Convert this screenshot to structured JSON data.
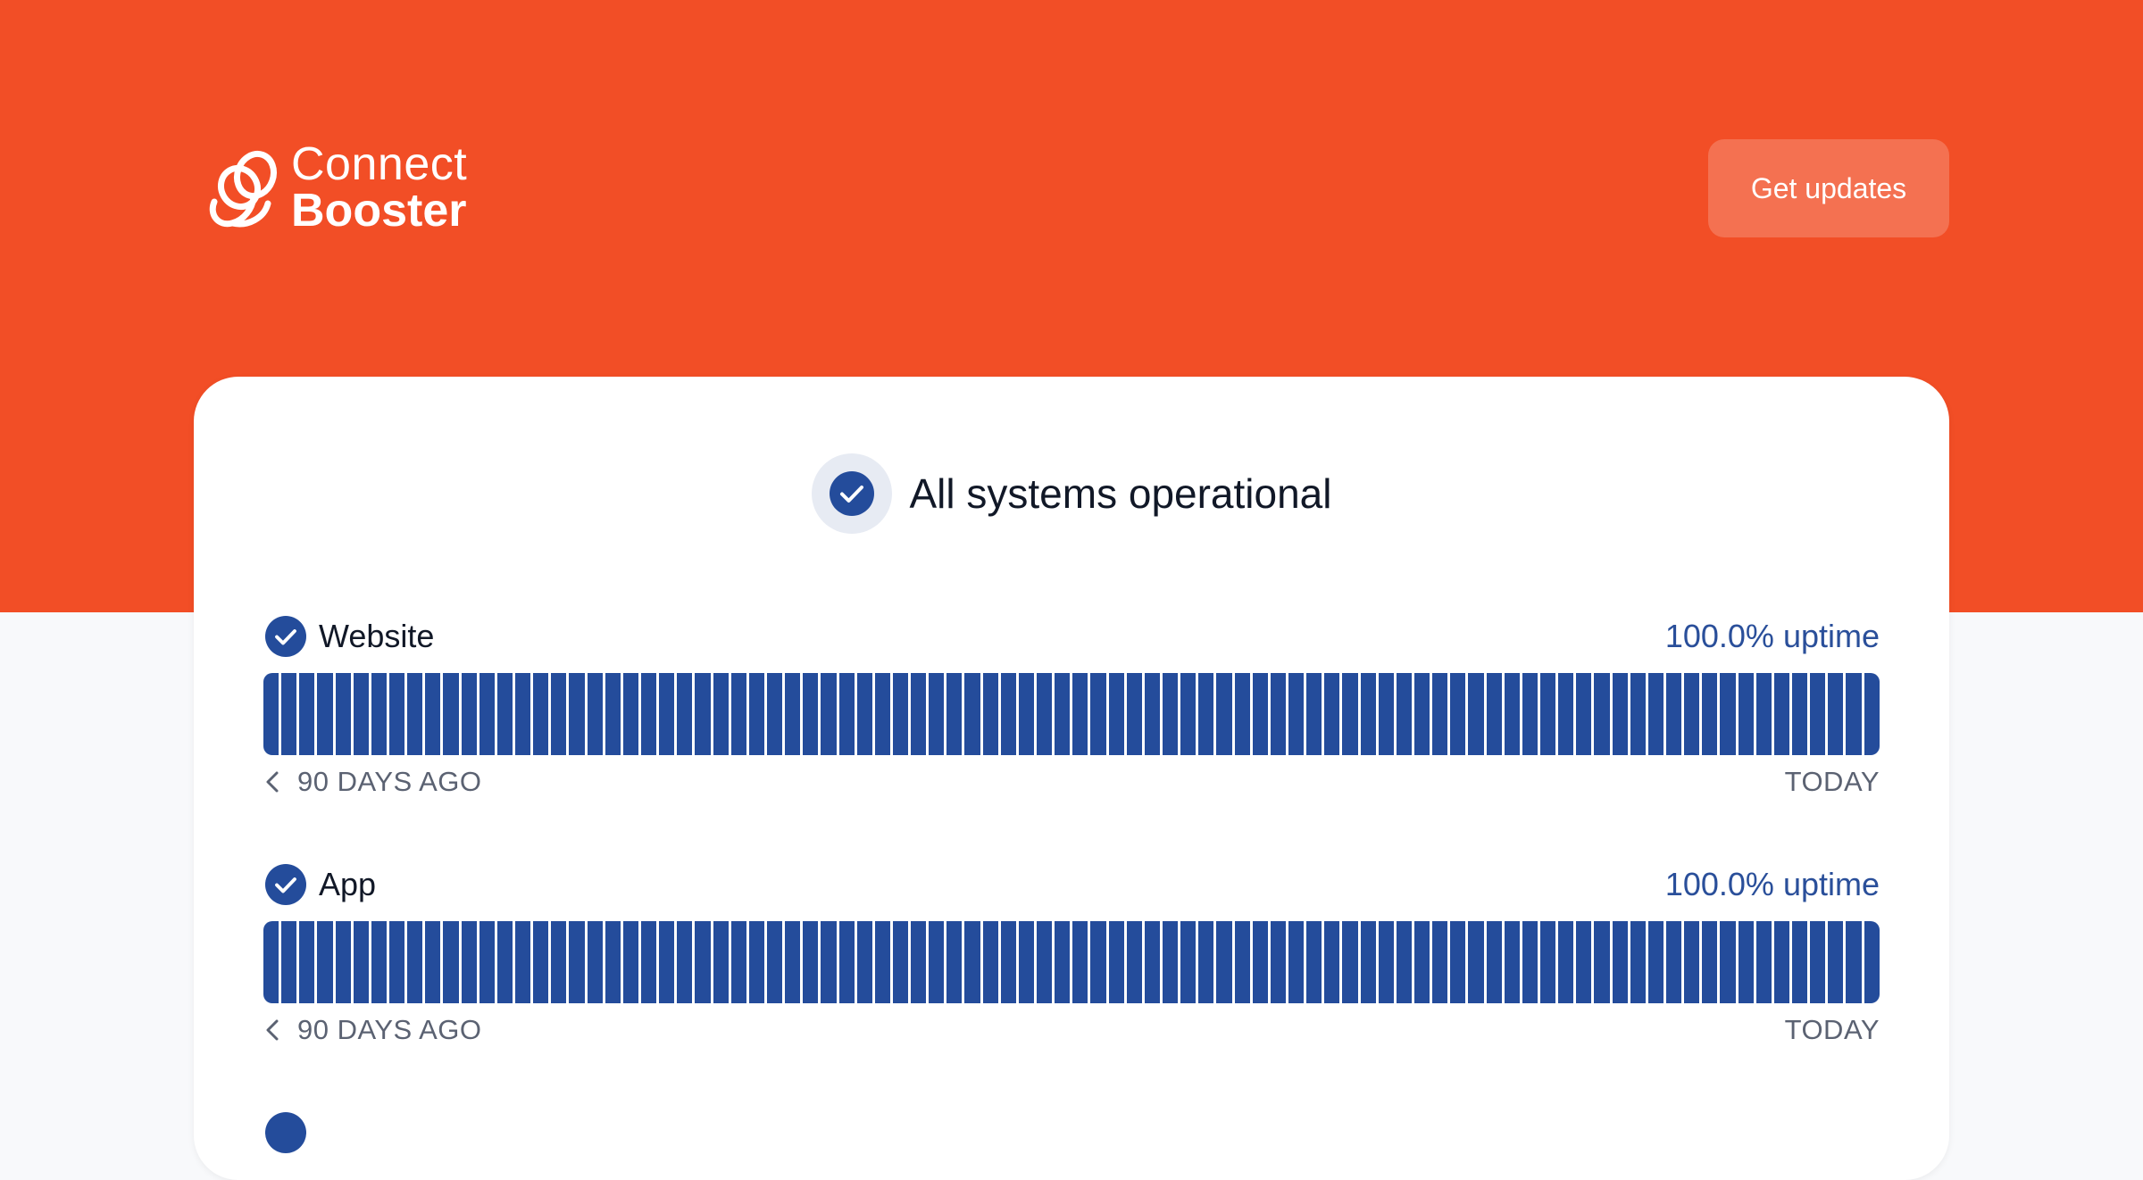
{
  "brand": {
    "name_line1": "Connect",
    "name_line2": "Booster",
    "color": "#f24e26"
  },
  "header": {
    "get_updates_label": "Get updates"
  },
  "overall_status": {
    "title": "All systems operational",
    "icon": "check-circle-icon",
    "color": "#244c9b"
  },
  "components": [
    {
      "name": "Website",
      "uptime": "100.0% uptime",
      "days": 90,
      "start_label": "90 DAYS AGO",
      "end_label": "TODAY"
    },
    {
      "name": "App",
      "uptime": "100.0% uptime",
      "days": 90,
      "start_label": "90 DAYS AGO",
      "end_label": "TODAY"
    }
  ]
}
